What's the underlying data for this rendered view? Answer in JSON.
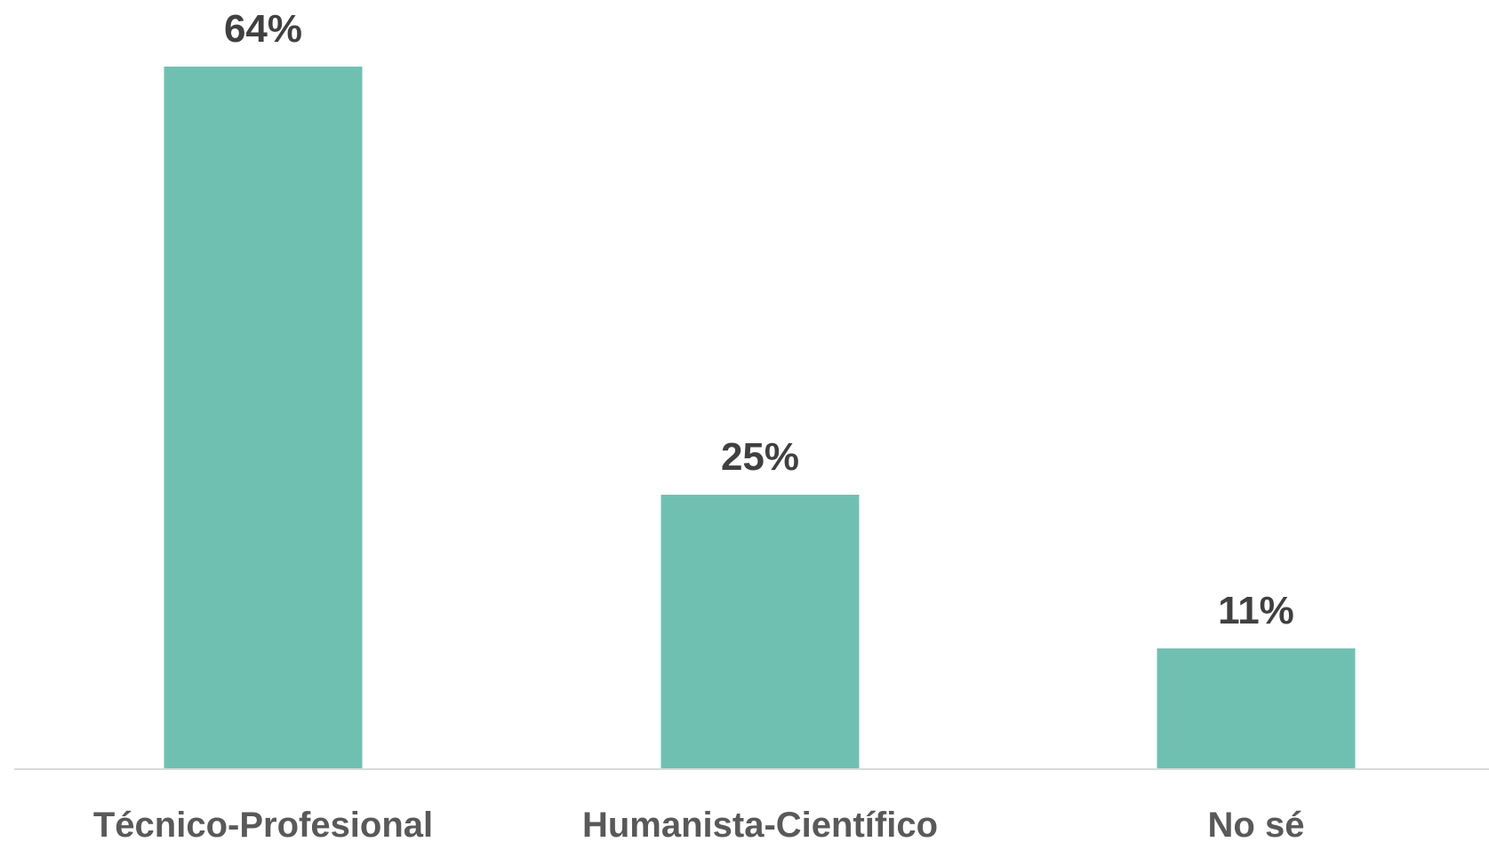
{
  "chart_data": {
    "type": "bar",
    "categories": [
      "Técnico-Profesional",
      "Humanista-Científico",
      "No sé"
    ],
    "values": [
      64,
      25,
      11
    ],
    "value_labels": [
      "64%",
      "25%",
      "11%"
    ],
    "ylim": [
      0,
      64
    ],
    "grid": false,
    "legend": "none",
    "bar_color": "#70c0b2",
    "axis_color": "#d9d9d9",
    "label_color": "#595959",
    "value_label_color": "#404040"
  }
}
